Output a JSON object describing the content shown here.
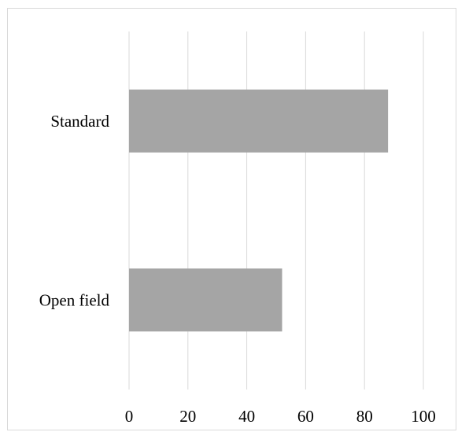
{
  "chart_data": {
    "type": "bar",
    "orientation": "horizontal",
    "categories": [
      "Standard",
      "Open field"
    ],
    "values": [
      88,
      52
    ],
    "xlim": [
      0,
      100
    ],
    "xticks": [
      0,
      20,
      40,
      60,
      80,
      100
    ],
    "grid": "vertical",
    "legend": "none",
    "title": "",
    "xlabel": "",
    "ylabel": "",
    "bar_color": "#a5a5a5",
    "grid_color": "#d9d9d9"
  }
}
